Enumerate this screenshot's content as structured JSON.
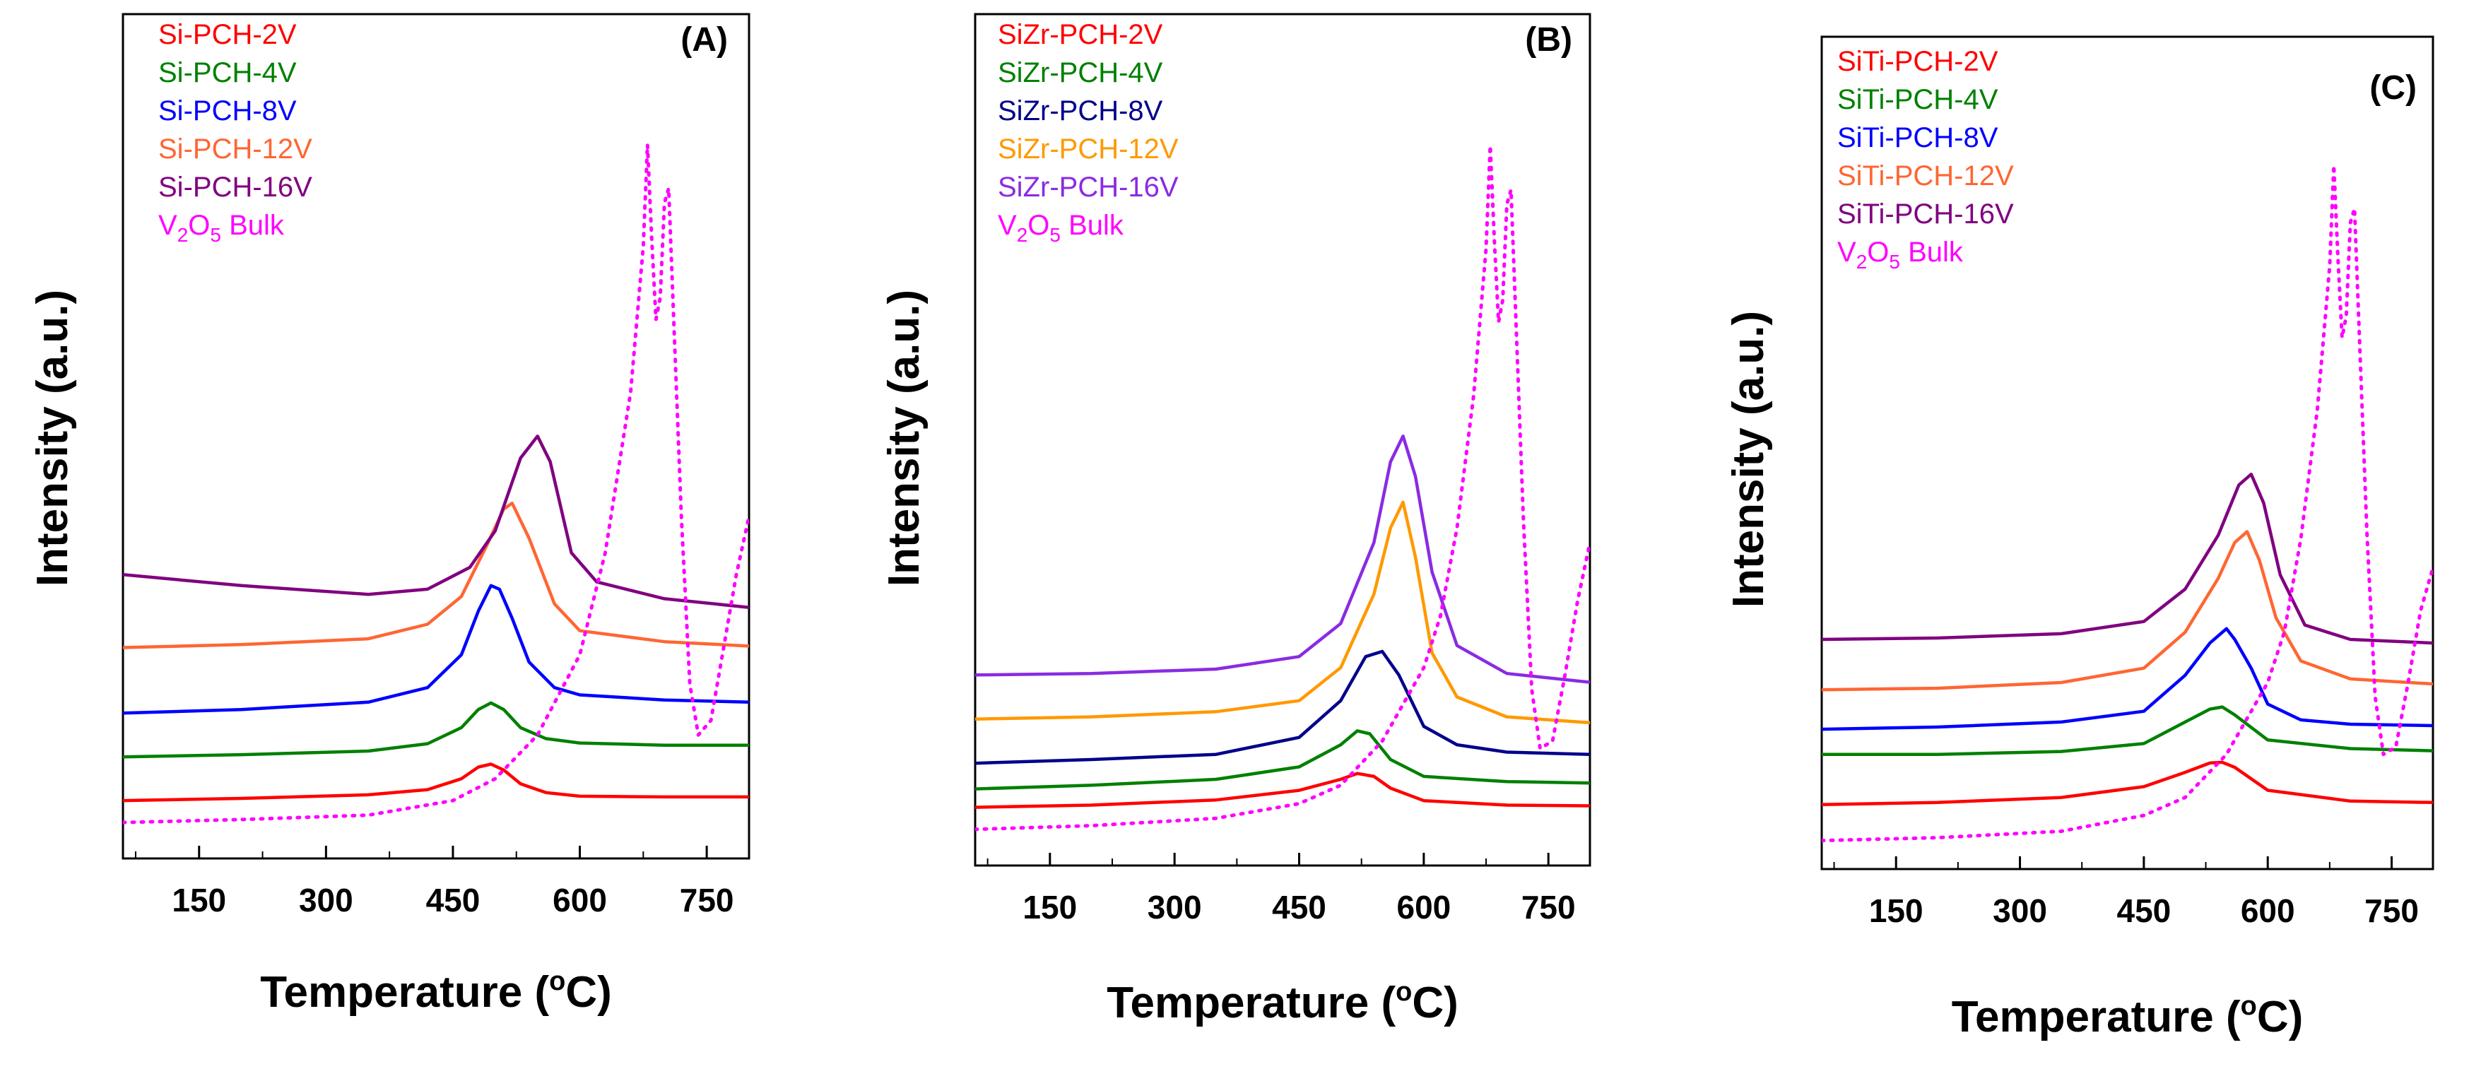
{
  "figure": {
    "panels": [
      {
        "id": "A",
        "tag": "(A)",
        "xlabel": "Temperature (°C)",
        "xlabel_main": "Temperature (",
        "xlabel_deg": "o",
        "xlabel_end": "C)",
        "ylabel": "Intensity (a.u.)",
        "legend": [
          {
            "label": "Si-PCH-2V",
            "color": "#ff0000"
          },
          {
            "label": "Si-PCH-4V",
            "color": "#008000"
          },
          {
            "label": "Si-PCH-8V",
            "color": "#0000ff"
          },
          {
            "label": "Si-PCH-12V",
            "color": "#ff6633"
          },
          {
            "label": "Si-PCH-16V",
            "color": "#800080"
          },
          {
            "label": "V2O5 Bulk",
            "color": "#ff00ff",
            "sub1": "2",
            "sub2": "5"
          }
        ]
      },
      {
        "id": "B",
        "tag": "(B)",
        "xlabel": "Temperature (°C)",
        "xlabel_main": "Temperature (",
        "xlabel_deg": "o",
        "xlabel_end": "C)",
        "ylabel": "Intensity (a.u.)",
        "legend": [
          {
            "label": "SiZr-PCH-2V",
            "color": "#ff0000"
          },
          {
            "label": "SiZr-PCH-4V",
            "color": "#008000"
          },
          {
            "label": "SiZr-PCH-8V",
            "color": "#00008b"
          },
          {
            "label": "SiZr-PCH-12V",
            "color": "#ff9900"
          },
          {
            "label": "SiZr-PCH-16V",
            "color": "#8a2be2"
          },
          {
            "label": "V2O5 Bulk",
            "color": "#ff00ff",
            "sub1": "2",
            "sub2": "5"
          }
        ]
      },
      {
        "id": "C",
        "tag": "(C)",
        "xlabel": "Temperature (°C)",
        "xlabel_main": "Temperature (",
        "xlabel_deg": "o",
        "xlabel_end": "C)",
        "ylabel": "Intensity (a.u.)",
        "legend": [
          {
            "label": "SiTi-PCH-2V",
            "color": "#ff0000"
          },
          {
            "label": "SiTi-PCH-4V",
            "color": "#008000"
          },
          {
            "label": "SiTi-PCH-8V",
            "color": "#0000ff"
          },
          {
            "label": "SiTi-PCH-12V",
            "color": "#ff6633"
          },
          {
            "label": "SiTi-PCH-16V",
            "color": "#800080"
          },
          {
            "label": "V2O5 Bulk",
            "color": "#ff00ff",
            "sub1": "2",
            "sub2": "5"
          }
        ]
      }
    ]
  },
  "chart_data": [
    {
      "type": "line",
      "panel": "A",
      "title": "(A)",
      "xlabel": "Temperature (°C)",
      "ylabel": "Intensity (a.u.)",
      "xlim": [
        60,
        800
      ],
      "ylim": [
        0,
        100
      ],
      "xticks": [
        150,
        300,
        450,
        600,
        750
      ],
      "yticks": [],
      "grid": false,
      "legend_position": "top-left",
      "series": [
        {
          "name": "Si-PCH-2V",
          "color": "#ff0000",
          "dashed": false,
          "x": [
            60,
            200,
            350,
            420,
            460,
            480,
            495,
            510,
            530,
            560,
            600,
            700,
            800
          ],
          "y": [
            6,
            6.3,
            6.8,
            7.5,
            9,
            10.6,
            11,
            10.2,
            8.3,
            7.1,
            6.6,
            6.5,
            6.5
          ]
        },
        {
          "name": "Si-PCH-4V",
          "color": "#008000",
          "dashed": false,
          "x": [
            60,
            200,
            350,
            420,
            460,
            480,
            495,
            510,
            530,
            560,
            600,
            700,
            800
          ],
          "y": [
            12,
            12.3,
            12.8,
            13.8,
            16,
            18.5,
            19.4,
            18.5,
            16,
            14.5,
            13.9,
            13.6,
            13.6
          ]
        },
        {
          "name": "Si-PCH-8V",
          "color": "#0000ff",
          "dashed": false,
          "x": [
            60,
            200,
            350,
            420,
            460,
            480,
            495,
            505,
            520,
            540,
            570,
            600,
            700,
            800
          ],
          "y": [
            18,
            18.5,
            19.5,
            21.5,
            26,
            32,
            35.5,
            35,
            31,
            25,
            21.5,
            20.5,
            19.8,
            19.5
          ]
        },
        {
          "name": "Si-PCH-12V",
          "color": "#ff6633",
          "dashed": false,
          "x": [
            60,
            200,
            350,
            420,
            460,
            490,
            510,
            520,
            540,
            570,
            600,
            700,
            800
          ],
          "y": [
            27,
            27.4,
            28.2,
            30.2,
            34,
            41,
            46,
            46.8,
            42,
            33,
            29.3,
            27.8,
            27.2
          ]
        },
        {
          "name": "Si-PCH-16V",
          "color": "#800080",
          "dashed": false,
          "x": [
            60,
            200,
            350,
            420,
            470,
            500,
            530,
            550,
            565,
            590,
            620,
            700,
            800
          ],
          "y": [
            37,
            35.5,
            34.3,
            35,
            38,
            43,
            53,
            56,
            52.5,
            40,
            36,
            33.7,
            32.5
          ]
        },
        {
          "name": "V2O5 Bulk",
          "color": "#ff00ff",
          "dashed": true,
          "x": [
            60,
            200,
            350,
            450,
            500,
            550,
            600,
            630,
            660,
            675,
            680,
            685,
            690,
            695,
            700,
            705,
            710,
            720,
            730,
            740,
            755,
            770,
            785,
            800
          ],
          "y": [
            3,
            3.4,
            4,
            6,
            9,
            15,
            26,
            40,
            62,
            82,
            96,
            83,
            72,
            75,
            88,
            90,
            75,
            45,
            22,
            15,
            17,
            27,
            37,
            45
          ]
        }
      ]
    },
    {
      "type": "line",
      "panel": "B",
      "title": "(B)",
      "xlabel": "Temperature (°C)",
      "ylabel": "Intensity (a.u.)",
      "xlim": [
        60,
        800
      ],
      "ylim": [
        0,
        100
      ],
      "xticks": [
        150,
        300,
        450,
        600,
        750
      ],
      "yticks": [],
      "grid": false,
      "legend_position": "top-left",
      "series": [
        {
          "name": "SiZr-PCH-2V",
          "color": "#ff0000",
          "dashed": false,
          "x": [
            60,
            200,
            350,
            450,
            500,
            520,
            540,
            560,
            600,
            700,
            800
          ],
          "y": [
            6,
            6.3,
            7,
            8.3,
            9.8,
            10.6,
            10.2,
            8.6,
            6.9,
            6.3,
            6.2
          ]
        },
        {
          "name": "SiZr-PCH-4V",
          "color": "#008000",
          "dashed": false,
          "x": [
            60,
            200,
            350,
            450,
            500,
            520,
            535,
            560,
            600,
            700,
            800
          ],
          "y": [
            8.5,
            9,
            9.8,
            11.5,
            14.5,
            16.4,
            16,
            12.5,
            10.2,
            9.5,
            9.3
          ]
        },
        {
          "name": "SiZr-PCH-8V",
          "color": "#00008b",
          "dashed": false,
          "x": [
            60,
            200,
            350,
            450,
            500,
            530,
            550,
            570,
            600,
            640,
            700,
            800
          ],
          "y": [
            12,
            12.5,
            13.2,
            15.5,
            20.5,
            26.5,
            27.2,
            24,
            17,
            14.5,
            13.5,
            13.2
          ]
        },
        {
          "name": "SiZr-PCH-12V",
          "color": "#ff9900",
          "dashed": false,
          "x": [
            60,
            200,
            350,
            450,
            500,
            540,
            560,
            575,
            590,
            610,
            640,
            700,
            800
          ],
          "y": [
            18,
            18.3,
            19,
            20.5,
            25,
            35,
            44,
            47.5,
            40,
            27,
            21,
            18.3,
            17.5
          ]
        },
        {
          "name": "SiZr-PCH-16V",
          "color": "#8a2be2",
          "dashed": false,
          "x": [
            60,
            200,
            350,
            450,
            500,
            540,
            560,
            575,
            590,
            610,
            640,
            700,
            800
          ],
          "y": [
            24,
            24.2,
            24.8,
            26.5,
            31,
            42,
            53,
            56.5,
            51,
            38,
            28,
            24.2,
            23
          ]
        },
        {
          "name": "V2O5 Bulk",
          "color": "#ff00ff",
          "dashed": true,
          "x": [
            60,
            200,
            350,
            450,
            500,
            550,
            580,
            600,
            620,
            640,
            660,
            675,
            680,
            685,
            690,
            695,
            700,
            705,
            710,
            720,
            730,
            740,
            755,
            770,
            785,
            800
          ],
          "y": [
            3,
            3.5,
            4.5,
            6.5,
            9,
            15,
            21,
            25,
            32,
            44,
            62,
            82,
            96,
            83,
            72,
            75,
            88,
            90,
            75,
            45,
            22,
            14,
            15,
            24,
            34,
            42
          ]
        }
      ]
    },
    {
      "type": "line",
      "panel": "C",
      "title": "(C)",
      "xlabel": "Temperature (°C)",
      "ylabel": "Intensity (a.u.)",
      "xlim": [
        60,
        800
      ],
      "ylim": [
        0,
        100
      ],
      "xticks": [
        150,
        300,
        450,
        600,
        750
      ],
      "yticks": [],
      "grid": false,
      "legend_position": "top-left",
      "series": [
        {
          "name": "SiTi-PCH-2V",
          "color": "#ff0000",
          "dashed": false,
          "x": [
            60,
            200,
            350,
            450,
            500,
            530,
            545,
            560,
            600,
            700,
            800
          ],
          "y": [
            7,
            7.3,
            8,
            9.5,
            11.5,
            12.8,
            12.9,
            12.2,
            9,
            7.5,
            7.3
          ]
        },
        {
          "name": "SiTi-PCH-4V",
          "color": "#008000",
          "dashed": false,
          "x": [
            60,
            200,
            350,
            450,
            500,
            530,
            545,
            560,
            600,
            700,
            800
          ],
          "y": [
            14,
            14,
            14.4,
            15.5,
            18.5,
            20.3,
            20.6,
            19.5,
            16,
            14.8,
            14.5
          ]
        },
        {
          "name": "SiTi-PCH-8V",
          "color": "#0000ff",
          "dashed": false,
          "x": [
            60,
            200,
            350,
            450,
            500,
            530,
            550,
            560,
            580,
            600,
            640,
            700,
            800
          ],
          "y": [
            17.5,
            17.8,
            18.5,
            20,
            25,
            29.5,
            31.5,
            30,
            26,
            21,
            18.8,
            18.2,
            18
          ]
        },
        {
          "name": "SiTi-PCH-12V",
          "color": "#ff6633",
          "dashed": false,
          "x": [
            60,
            200,
            350,
            450,
            500,
            540,
            560,
            575,
            590,
            610,
            640,
            700,
            800
          ],
          "y": [
            23,
            23.2,
            24,
            26,
            31,
            38.5,
            43.5,
            45,
            41,
            33,
            27,
            24.5,
            23.8
          ]
        },
        {
          "name": "SiTi-PCH-16V",
          "color": "#800080",
          "dashed": false,
          "x": [
            60,
            200,
            350,
            450,
            500,
            540,
            565,
            580,
            595,
            615,
            645,
            700,
            800
          ],
          "y": [
            30,
            30.2,
            30.8,
            32.5,
            37,
            44.5,
            51.5,
            53,
            49,
            39,
            32,
            30,
            29.5
          ]
        },
        {
          "name": "V2O5 Bulk",
          "color": "#ff00ff",
          "dashed": true,
          "x": [
            60,
            200,
            350,
            450,
            500,
            550,
            580,
            600,
            620,
            640,
            660,
            675,
            680,
            685,
            690,
            695,
            700,
            705,
            710,
            720,
            730,
            740,
            755,
            770,
            785,
            800
          ],
          "y": [
            2,
            2.4,
            3.3,
            5.5,
            8,
            14,
            20,
            24,
            31,
            44,
            62,
            82,
            96,
            83,
            72,
            75,
            88,
            90,
            75,
            45,
            22,
            14,
            15,
            24,
            34,
            40
          ]
        }
      ]
    }
  ]
}
